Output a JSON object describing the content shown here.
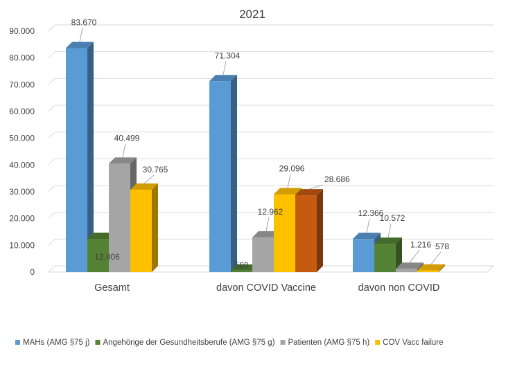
{
  "chart_data": {
    "type": "bar",
    "title": "2021",
    "xlabel": "",
    "ylabel": "",
    "ylim": [
      0,
      90000
    ],
    "yticks": [
      0,
      10000,
      20000,
      30000,
      40000,
      50000,
      60000,
      70000,
      80000,
      90000
    ],
    "ytick_labels": [
      "0",
      "10.000",
      "20.000",
      "30.000",
      "40.000",
      "50.000",
      "60.000",
      "70.000",
      "80.000",
      "90.000"
    ],
    "grid": true,
    "legend_position": "bottom",
    "categories": [
      "Gesamt",
      "davon COVID Vaccine",
      "davon non COVID"
    ],
    "series": [
      {
        "name": "MAHs (AMG §75 j)",
        "color": "#5b9bd5",
        "values": [
          83670,
          71304,
          12366
        ],
        "labels": [
          "83.670",
          "71.304",
          "12.366"
        ]
      },
      {
        "name": "Angehörige der Gesundheitsberufe (AMG §75 g)",
        "color": "#548235",
        "values": [
          12406,
          560,
          10572
        ],
        "labels": [
          "12.406",
          "560",
          "10.572"
        ]
      },
      {
        "name": "Patienten (AMG §75 h)",
        "color": "#a5a5a5",
        "values": [
          40499,
          12962,
          1216
        ],
        "labels": [
          "40.499",
          "12.962",
          "1.216"
        ]
      },
      {
        "name": "COV Vacc failure",
        "color": "#ffc000",
        "values": [
          30765,
          29096,
          578
        ],
        "labels": [
          "30.765",
          "29.096",
          "578"
        ]
      },
      {
        "name": "",
        "color": "#c55a11",
        "values": [
          null,
          28686,
          null
        ],
        "labels": [
          "",
          "28.686",
          ""
        ]
      }
    ]
  }
}
